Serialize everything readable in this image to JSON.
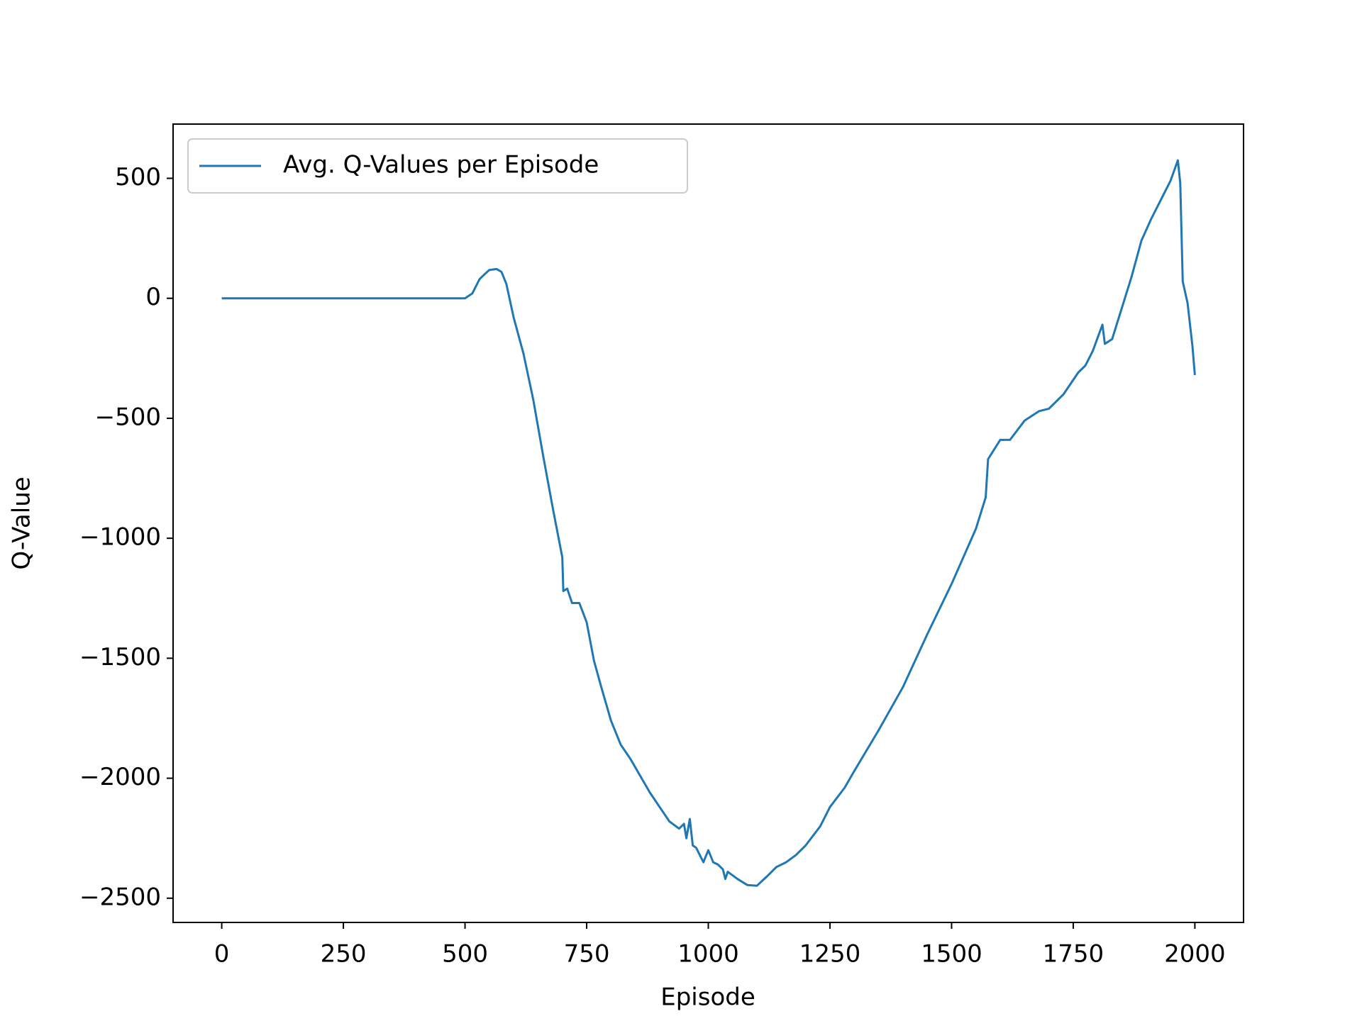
{
  "chart_data": {
    "type": "line",
    "xlabel": "Episode",
    "ylabel": "Q-Value",
    "xlim": [
      -100,
      2100
    ],
    "xticks": [
      0,
      250,
      500,
      750,
      1000,
      1250,
      1500,
      1750,
      2000
    ],
    "ylim": [
      -2601,
      726
    ],
    "yticks": [
      {
        "value": -2500,
        "label": "−2500"
      },
      {
        "value": -2000,
        "label": "−2000"
      },
      {
        "value": -1500,
        "label": "−1500"
      },
      {
        "value": -1000,
        "label": "−1000"
      },
      {
        "value": -500,
        "label": "−500"
      },
      0,
      500
    ],
    "legend": "upper left",
    "series": [
      {
        "name": "Avg. Q-Values per Episode",
        "color": "#1f77b4",
        "x": [
          0,
          500,
          515,
          530,
          540,
          550,
          565,
          575,
          585,
          600,
          620,
          640,
          660,
          680,
          700,
          702,
          710,
          720,
          735,
          750,
          765,
          780,
          800,
          820,
          840,
          860,
          880,
          900,
          920,
          940,
          950,
          955,
          962,
          968,
          975,
          990,
          1000,
          1010,
          1020,
          1030,
          1035,
          1040,
          1060,
          1080,
          1100,
          1120,
          1140,
          1160,
          1180,
          1200,
          1230,
          1250,
          1280,
          1300,
          1350,
          1400,
          1450,
          1500,
          1550,
          1570,
          1575,
          1600,
          1620,
          1650,
          1680,
          1700,
          1730,
          1760,
          1775,
          1790,
          1810,
          1815,
          1830,
          1850,
          1870,
          1890,
          1910,
          1930,
          1950,
          1965,
          1970,
          1975,
          1985,
          1995,
          2000
        ],
        "values": [
          0,
          0,
          20,
          80,
          100,
          118,
          122,
          110,
          60,
          -80,
          -230,
          -420,
          -650,
          -870,
          -1080,
          -1220,
          -1210,
          -1270,
          -1270,
          -1350,
          -1510,
          -1620,
          -1760,
          -1860,
          -1920,
          -1990,
          -2060,
          -2120,
          -2180,
          -2210,
          -2190,
          -2250,
          -2170,
          -2280,
          -2290,
          -2350,
          -2300,
          -2350,
          -2360,
          -2380,
          -2420,
          -2390,
          -2420,
          -2445,
          -2448,
          -2410,
          -2370,
          -2350,
          -2320,
          -2280,
          -2200,
          -2120,
          -2040,
          -1970,
          -1800,
          -1620,
          -1400,
          -1190,
          -960,
          -830,
          -670,
          -590,
          -590,
          -510,
          -470,
          -460,
          -400,
          -310,
          -280,
          -220,
          -110,
          -190,
          -170,
          -40,
          90,
          240,
          330,
          410,
          490,
          575,
          480,
          70,
          -20,
          -200,
          -320
        ]
      }
    ]
  }
}
